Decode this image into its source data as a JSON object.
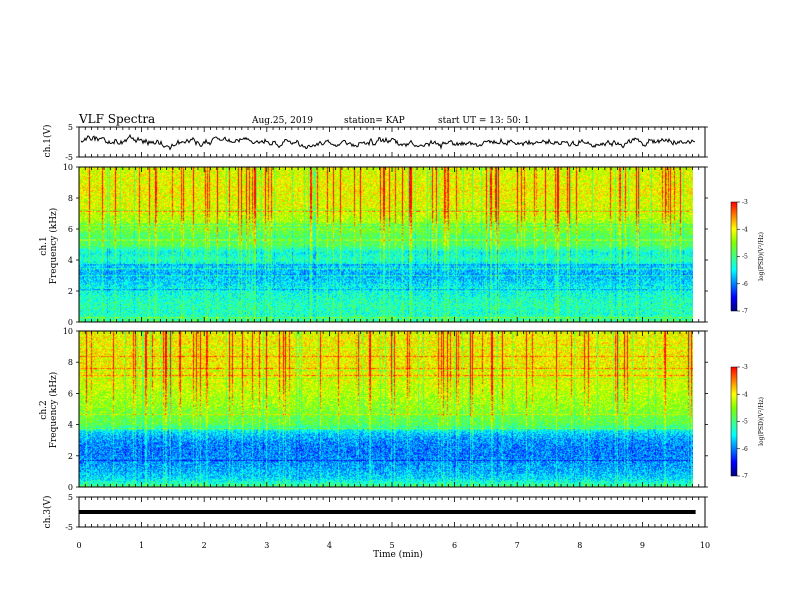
{
  "header": {
    "title": "VLF Spectra",
    "date": "Aug.25, 2019",
    "station": "station= KAP",
    "start": "start  UT =   13: 50: 1"
  },
  "colors": {
    "colormap": [
      "#000080",
      "#0000ff",
      "#0080ff",
      "#00ffff",
      "#40ff80",
      "#80ff00",
      "#ffff00",
      "#ff8000",
      "#ff0000",
      "#ffffff"
    ],
    "trace": "#000000",
    "frame": "#000000"
  },
  "colorbar": {
    "label": "log(PSD)(V²/Hz)",
    "ticks": [
      "-3",
      "-4",
      "-5",
      "-6",
      "-7"
    ]
  },
  "chart_data": [
    {
      "type": "line",
      "panel": "ch1_waveform",
      "ylabel": "ch.1(V)",
      "ylim": [
        -5,
        5
      ],
      "yticks": [
        "5",
        "-5"
      ],
      "xlim": [
        0,
        10
      ],
      "data_end_min": 9.85,
      "description_values": {
        "mean": 0.0,
        "amplitude": 1.5
      }
    },
    {
      "type": "heatmap",
      "panel": "ch1_spectrogram",
      "ylabel": "ch.1",
      "ylabel2": "Frequency (kHz)",
      "ylim": [
        0,
        10
      ],
      "yticks": [
        "0",
        "2",
        "4",
        "6",
        "8",
        "10"
      ],
      "xlim": [
        0,
        10
      ],
      "zlim": [
        -7,
        -3
      ],
      "freq_profile_khz": [
        0,
        0.5,
        1,
        1.5,
        2,
        2.5,
        3,
        3.5,
        4,
        4.5,
        5,
        5.5,
        6,
        6.5,
        7,
        7.5,
        8,
        8.5,
        9,
        9.5,
        10
      ],
      "log_psd_profile": [
        -5.0,
        -5.3,
        -5.2,
        -5.3,
        -5.4,
        -5.6,
        -5.8,
        -5.7,
        -5.2,
        -5.4,
        -4.8,
        -4.9,
        -4.6,
        -4.4,
        -4.2,
        -4.1,
        -4.1,
        -4.0,
        -4.1,
        -4.1,
        -4.2
      ]
    },
    {
      "type": "heatmap",
      "panel": "ch2_spectrogram",
      "ylabel": "ch.2",
      "ylabel2": "Frequency (kHz)",
      "ylim": [
        0,
        10
      ],
      "yticks": [
        "0",
        "2",
        "4",
        "6",
        "8",
        "10"
      ],
      "xlim": [
        0,
        10
      ],
      "zlim": [
        -7,
        -3
      ],
      "freq_profile_khz": [
        0,
        0.5,
        1,
        1.5,
        2,
        2.5,
        3,
        3.5,
        4,
        4.5,
        5,
        5.5,
        6,
        6.5,
        7,
        7.5,
        8,
        8.5,
        9,
        9.5,
        10
      ],
      "log_psd_profile": [
        -5.0,
        -5.6,
        -5.8,
        -5.9,
        -6.0,
        -6.0,
        -5.9,
        -5.6,
        -4.8,
        -4.7,
        -4.5,
        -4.4,
        -4.3,
        -4.2,
        -4.1,
        -4.0,
        -4.0,
        -4.0,
        -4.0,
        -4.0,
        -4.1
      ]
    },
    {
      "type": "line",
      "panel": "ch3_waveform",
      "ylabel": "ch.3(V)",
      "ylim": [
        -5,
        5
      ],
      "yticks": [
        "5",
        "-5"
      ],
      "xlim": [
        0,
        10
      ],
      "data_end_min": 9.85,
      "constant_value": 0,
      "xlabel": "Time (min)",
      "xticks": [
        "0",
        "1",
        "2",
        "3",
        "4",
        "5",
        "6",
        "7",
        "8",
        "9",
        "10"
      ]
    }
  ]
}
